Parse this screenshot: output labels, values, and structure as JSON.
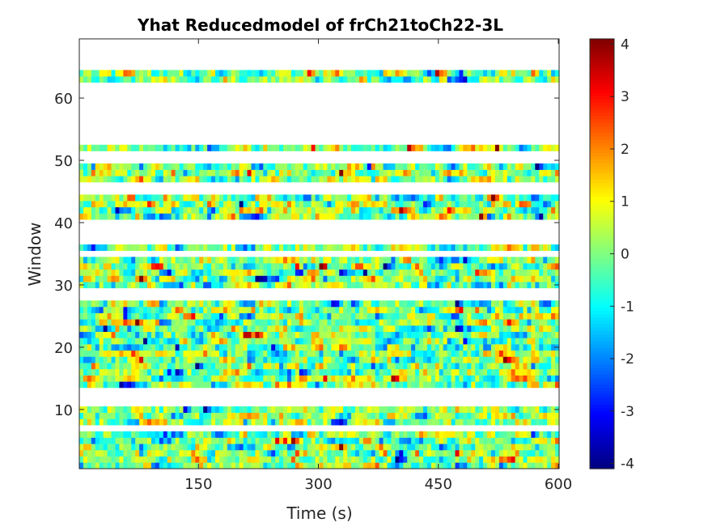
{
  "chart_data": {
    "type": "heatmap",
    "title": "Yhat Reducedmodel of frCh21toCh22-3L",
    "xlabel": "Time (s)",
    "ylabel": "Window",
    "xlim": [
      1,
      601
    ],
    "ylim": [
      0.5,
      69.5
    ],
    "xticks": [
      150,
      300,
      450,
      600
    ],
    "xtick_labels": [
      "150",
      "300",
      "450",
      "600"
    ],
    "yticks": [
      10,
      20,
      30,
      40,
      50,
      60
    ],
    "ytick_labels": [
      "10",
      "20",
      "30",
      "40",
      "50",
      "60"
    ],
    "colorbar": {
      "colormap": "jet",
      "clim": [
        -4.1,
        4.1
      ],
      "ticks": [
        -4,
        -3,
        -2,
        -1,
        0,
        1,
        2,
        3,
        4
      ],
      "tick_labels": [
        "-4",
        "-3",
        "-2",
        "-1",
        "0",
        "1",
        "2",
        "3",
        "4"
      ]
    },
    "rows_with_data": [
      1,
      2,
      3,
      4,
      5,
      6,
      8,
      9,
      10,
      14,
      15,
      16,
      17,
      18,
      19,
      20,
      21,
      22,
      23,
      24,
      25,
      26,
      27,
      30,
      31,
      32,
      33,
      34,
      36,
      41,
      42,
      43,
      44,
      47,
      48,
      49,
      52,
      63,
      64
    ],
    "empty_rows_note_values": "rows not listed are NaN (white)",
    "value_distribution": {
      "mean": 0,
      "std": 1.0,
      "min": -4.1,
      "max": 4.1
    },
    "grid": false,
    "legend": "none"
  }
}
